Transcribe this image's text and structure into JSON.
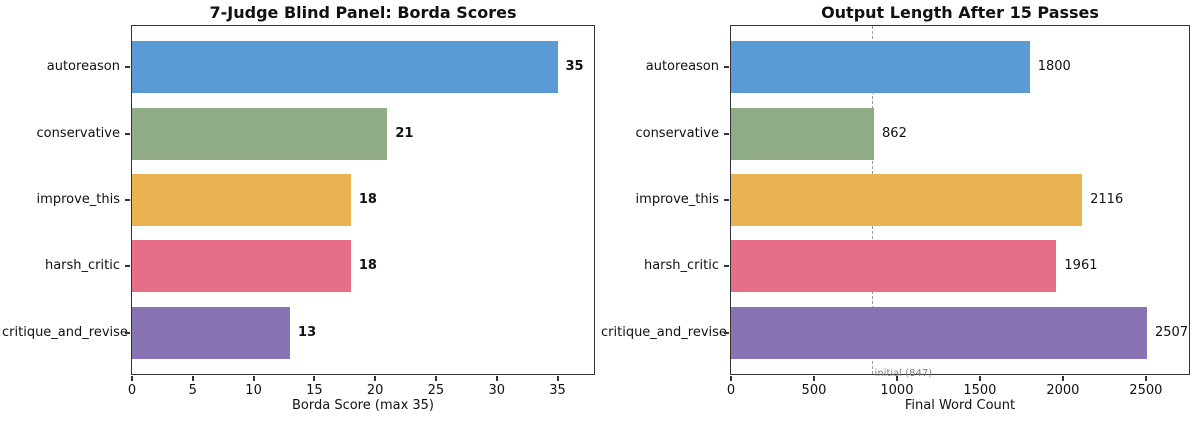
{
  "chart_data": [
    {
      "type": "bar",
      "orientation": "horizontal",
      "title": "7-Judge Blind Panel: Borda Scores",
      "categories": [
        "autoreason",
        "conservative",
        "improve_this",
        "harsh_critic",
        "critique_and_revise"
      ],
      "values": [
        35,
        21,
        18,
        18,
        13
      ],
      "value_labels": [
        "35",
        "21",
        "18",
        "18",
        "13"
      ],
      "value_label_bold": true,
      "bar_colors": [
        "#5b9bd5",
        "#8fac85",
        "#e9b351",
        "#e66e86",
        "#8874b2"
      ],
      "xlabel": "Borda Score (max 35)",
      "xlim": [
        0,
        38
      ],
      "xticks": [
        0,
        5,
        10,
        15,
        20,
        25,
        30,
        35
      ],
      "xtick_labels": [
        "0",
        "5",
        "10",
        "15",
        "20",
        "25",
        "30",
        "35"
      ],
      "grid": false,
      "legend": null
    },
    {
      "type": "bar",
      "orientation": "horizontal",
      "title": "Output Length After 15 Passes",
      "categories": [
        "autoreason",
        "conservative",
        "improve_this",
        "harsh_critic",
        "critique_and_revise"
      ],
      "values": [
        1800,
        862,
        2116,
        1961,
        2507
      ],
      "value_labels": [
        "1800",
        "862",
        "2116",
        "1961",
        "2507"
      ],
      "value_label_bold": false,
      "bar_colors": [
        "#5b9bd5",
        "#8fac85",
        "#e9b351",
        "#e66e86",
        "#8874b2"
      ],
      "xlabel": "Final Word Count",
      "xlim": [
        0,
        2760
      ],
      "xticks": [
        0,
        500,
        1000,
        1500,
        2000,
        2500
      ],
      "xtick_labels": [
        "0",
        "500",
        "1000",
        "1500",
        "2000",
        "2500"
      ],
      "grid": false,
      "legend": null,
      "vline": {
        "x": 847,
        "label": "initial (847)",
        "color": "#9a9a9a",
        "label_color": "#808080",
        "style": "dashed"
      }
    }
  ]
}
